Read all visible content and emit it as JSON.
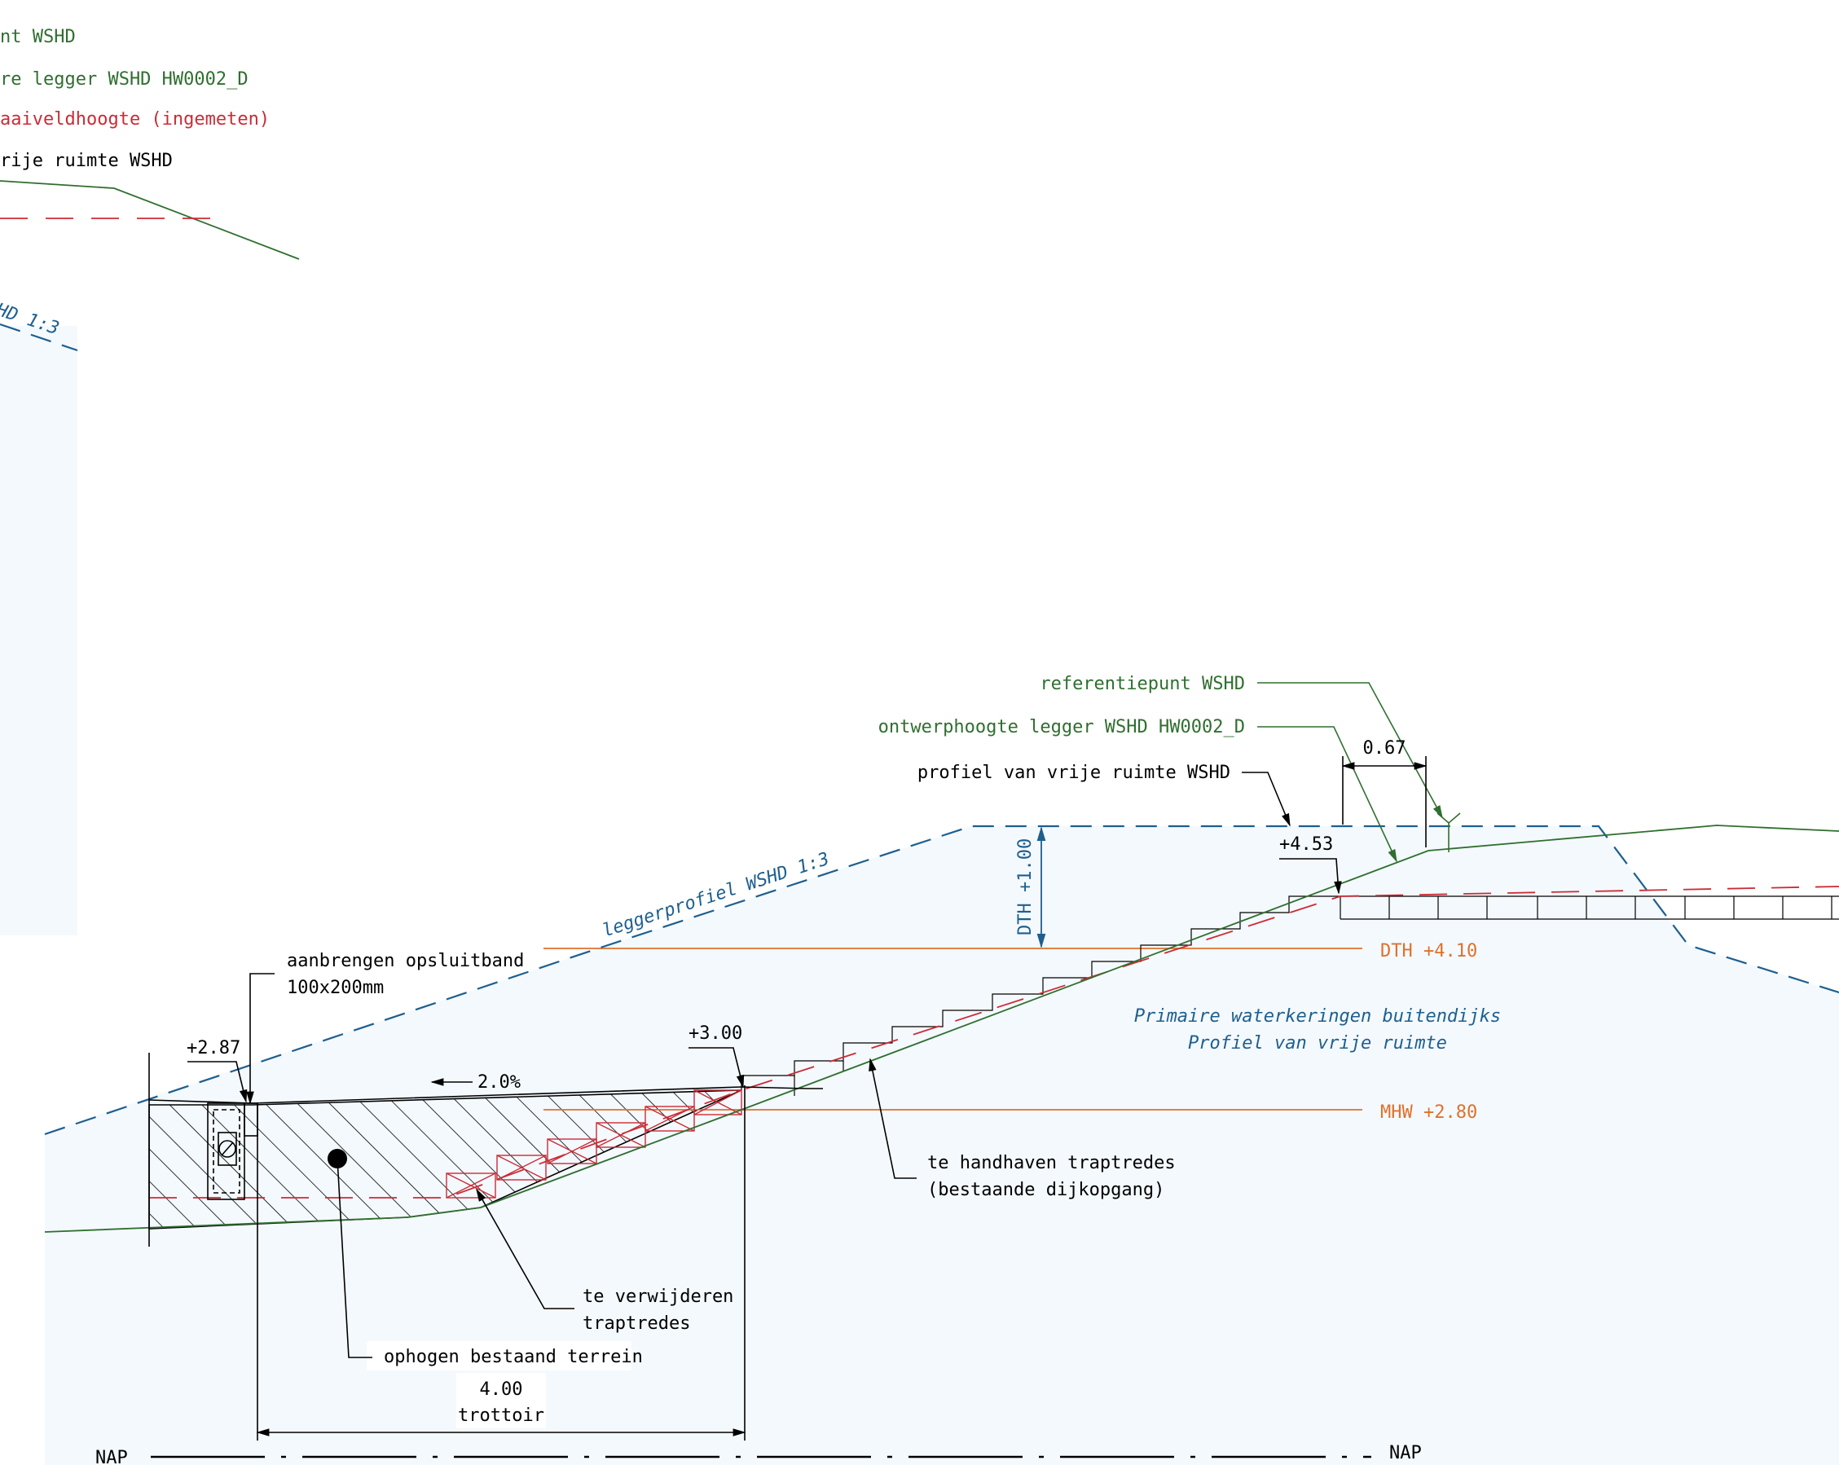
{
  "legend": {
    "referentiepunt": "nt WSHD",
    "ontwerphoogte": "re legger WSHD HW0002_D",
    "maaiveld": "aaiveldhoogte (ingemeten)",
    "vrije_ruimte": "rije ruimte WSHD",
    "legger_partial": "HD 1:3"
  },
  "labels": {
    "referentiepunt": "referentiepunt WSHD",
    "ontwerphoogte": "ontwerphoogte legger WSHD HW0002_D",
    "profiel_vrije_ruimte": "profiel van vrije ruimte WSHD",
    "legger_profiel": "leggerprofiel WSHD 1:3",
    "dim_067": "0.67",
    "level_453": "+4.53",
    "dth_plus": "DTH +1.00",
    "dth_level": "DTH +4.10",
    "mhw_level": "MHW +2.80",
    "region_line1": "Primaire waterkeringen buitendijks",
    "region_line2": "Profiel van vrije ruimte",
    "opsluitband_line1": "aanbrengen opsluitband",
    "opsluitband_line2": "100x200mm",
    "level_287": "+2.87",
    "slope": "2.0%",
    "level_300": "+3.00",
    "handhaven_line1": "te handhaven traptredes",
    "handhaven_line2": "(bestaande dijkopgang)",
    "verwijderen_line1": "te verwijderen",
    "verwijderen_line2": "traptredes",
    "ophogen": "ophogen bestaand terrein",
    "dim_400": "4.00",
    "trottoir": "trottoir",
    "nap_left": "NAP",
    "nap_right": "NAP"
  },
  "colors": {
    "green": "#2f6f2f",
    "red": "#cc2b36",
    "orange": "#e0712b",
    "blue": "#1d5f8f",
    "fill": "#f4f9fd"
  }
}
